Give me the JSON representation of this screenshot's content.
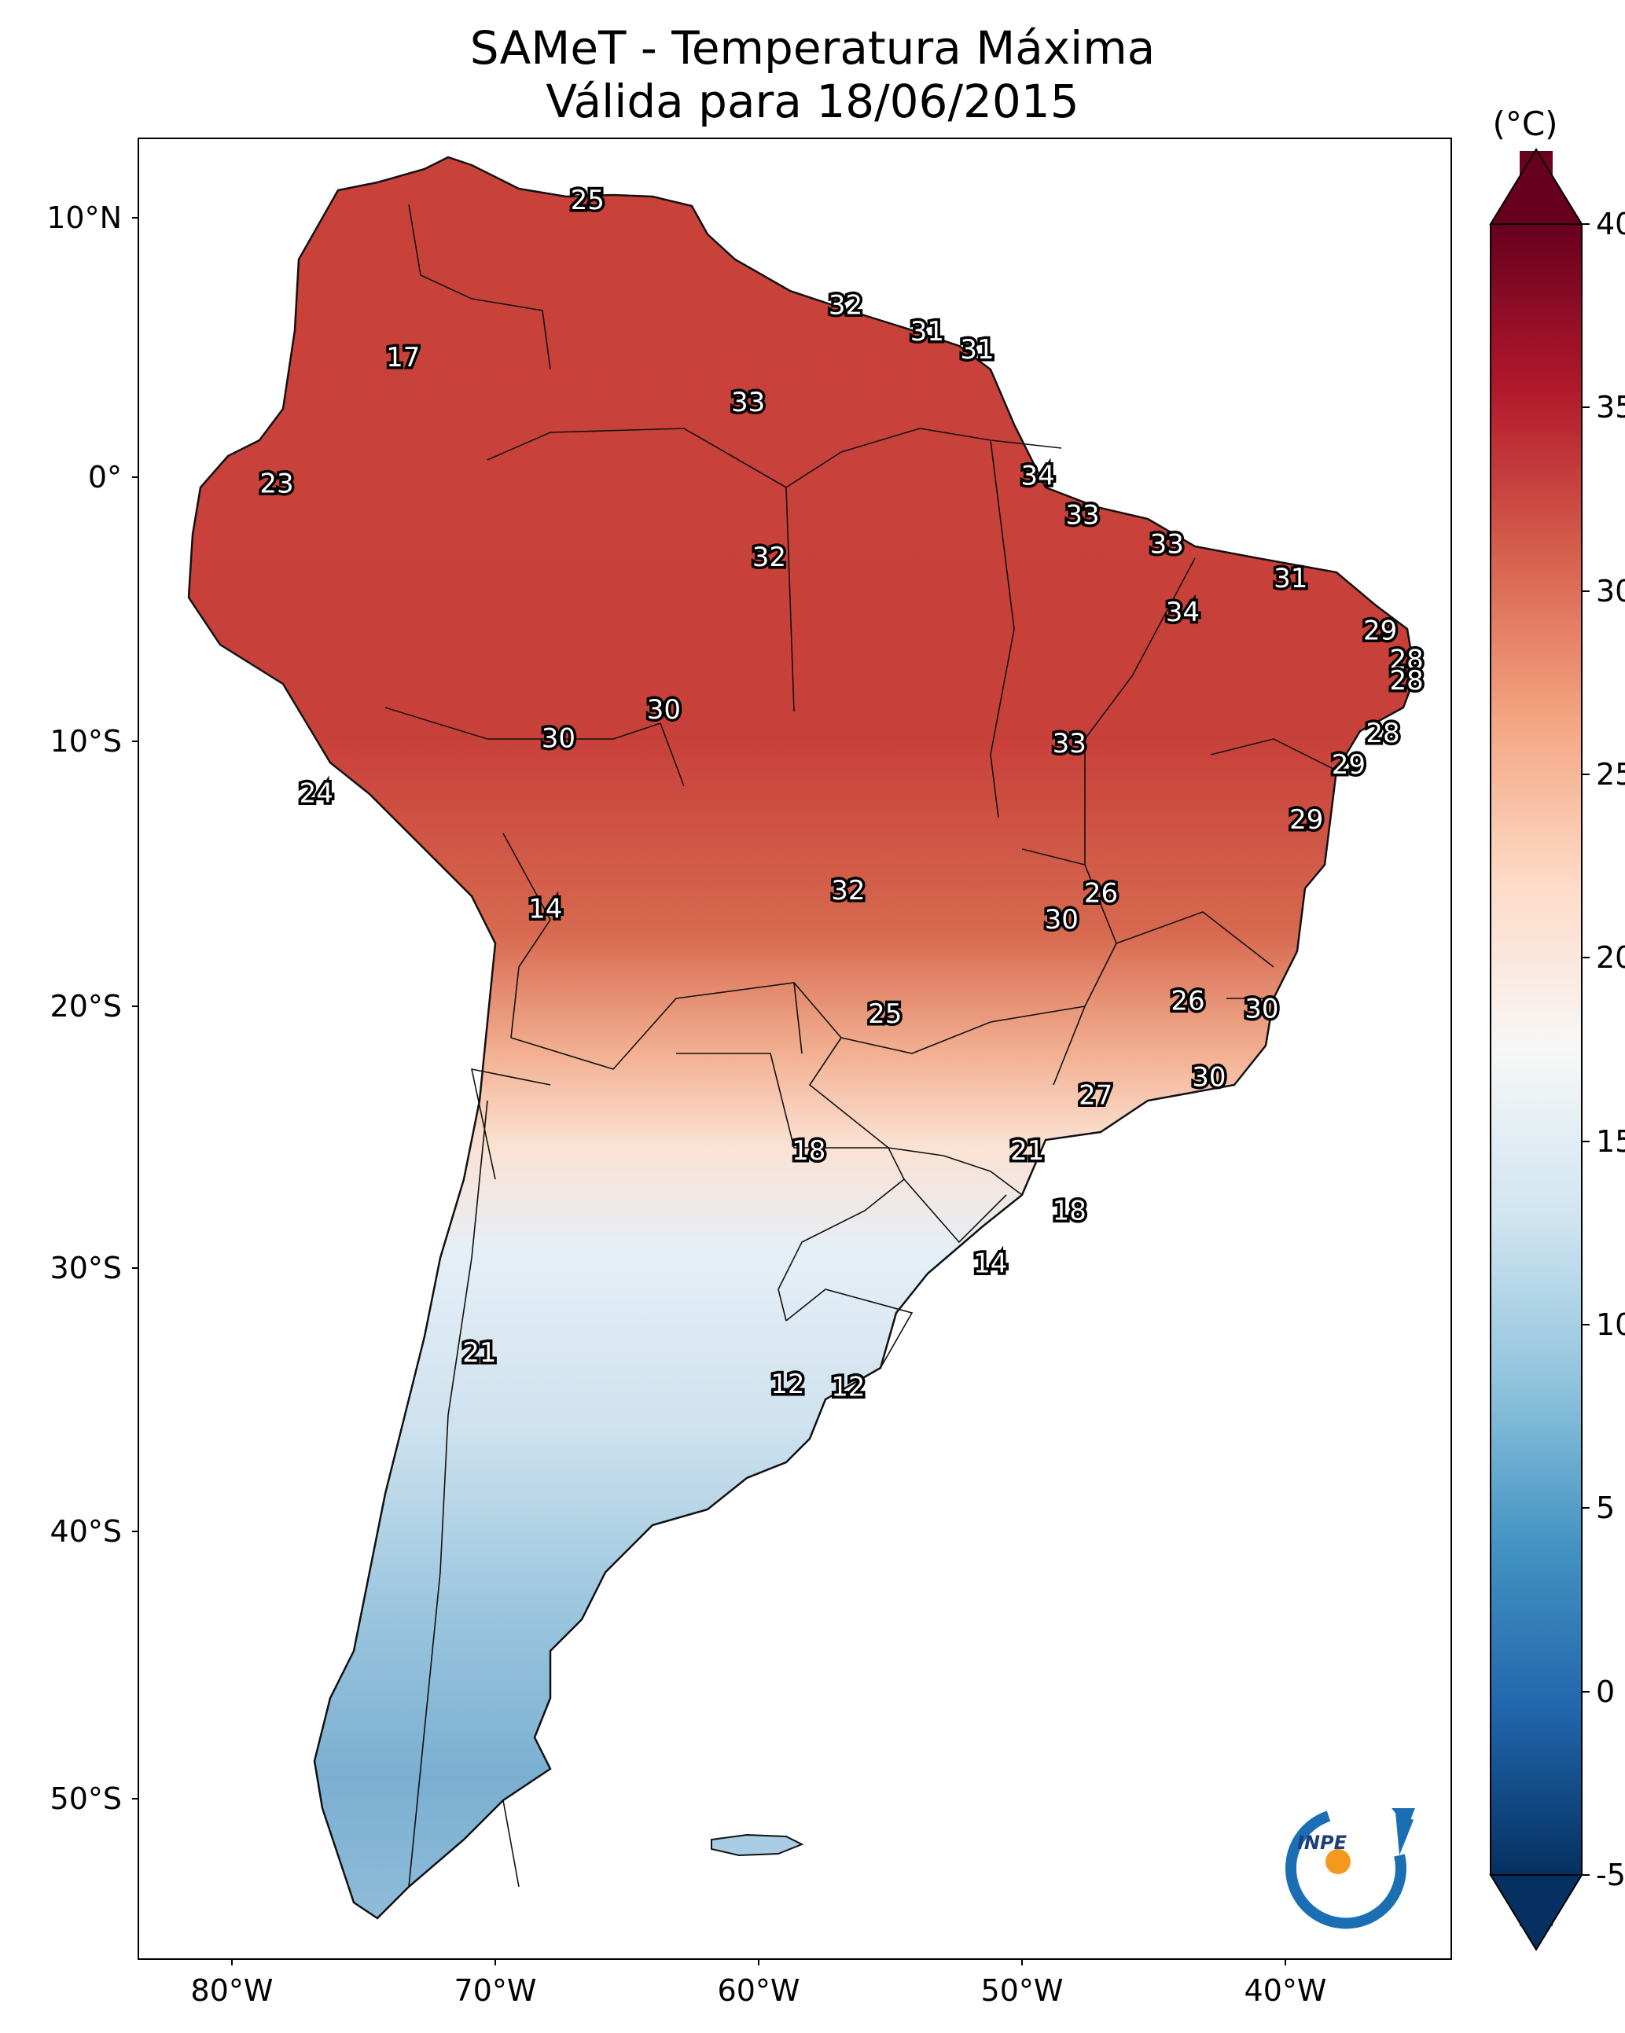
{
  "title": "SAMeT - Temperatura Máxima",
  "subtitle": "Válida para 18/06/2015",
  "colorbar": {
    "unit": "(°C)",
    "ticks": [
      "40",
      "35",
      "30",
      "25",
      "20",
      "15",
      "10",
      "5",
      "0",
      "-5"
    ],
    "colormap": [
      "#67001f",
      "#b2182b",
      "#d6604d",
      "#f4a582",
      "#fddbc7",
      "#f7f7f7",
      "#d1e5f0",
      "#92c5de",
      "#4393c3",
      "#2166ac",
      "#053061"
    ]
  },
  "axes": {
    "lat_labels": [
      "10°N",
      "0°",
      "10°S",
      "20°S",
      "30°S",
      "40°S",
      "50°S"
    ],
    "lon_labels": [
      "80°W",
      "70°W",
      "60°W",
      "50°W",
      "40°W"
    ]
  },
  "logo": {
    "text": "INPE",
    "icon": "inpe-logo"
  },
  "point_labels": [
    {
      "v": "25",
      "lon": -66.5,
      "lat": 10.5
    },
    {
      "v": "17",
      "lon": -73.5,
      "lat": 4.5
    },
    {
      "v": "32",
      "lon": -56.7,
      "lat": 6.5
    },
    {
      "v": "31",
      "lon": -53.6,
      "lat": 5.5
    },
    {
      "v": "31",
      "lon": -51.7,
      "lat": 4.8
    },
    {
      "v": "33",
      "lon": -60.4,
      "lat": 2.8
    },
    {
      "v": "23",
      "lon": -78.3,
      "lat": -0.3
    },
    {
      "v": "34",
      "lon": -49.4,
      "lat": 0.0
    },
    {
      "v": "33",
      "lon": -47.7,
      "lat": -1.5
    },
    {
      "v": "33",
      "lon": -44.5,
      "lat": -2.6
    },
    {
      "v": "32",
      "lon": -59.6,
      "lat": -3.1
    },
    {
      "v": "31",
      "lon": -39.8,
      "lat": -3.9
    },
    {
      "v": "34",
      "lon": -43.9,
      "lat": -5.2
    },
    {
      "v": "29",
      "lon": -36.4,
      "lat": -5.9
    },
    {
      "v": "28",
      "lon": -35.4,
      "lat": -7.0
    },
    {
      "v": "28",
      "lon": -35.4,
      "lat": -7.8
    },
    {
      "v": "30",
      "lon": -63.6,
      "lat": -8.9
    },
    {
      "v": "30",
      "lon": -67.6,
      "lat": -10.0
    },
    {
      "v": "33",
      "lon": -48.2,
      "lat": -10.2
    },
    {
      "v": "28",
      "lon": -36.3,
      "lat": -9.8
    },
    {
      "v": "29",
      "lon": -37.6,
      "lat": -11.0
    },
    {
      "v": "24",
      "lon": -76.8,
      "lat": -12.1
    },
    {
      "v": "29",
      "lon": -39.2,
      "lat": -13.1
    },
    {
      "v": "32",
      "lon": -56.6,
      "lat": -15.8
    },
    {
      "v": "26",
      "lon": -47.0,
      "lat": -15.9
    },
    {
      "v": "14",
      "lon": -68.1,
      "lat": -16.5
    },
    {
      "v": "30",
      "lon": -48.5,
      "lat": -16.9
    },
    {
      "v": "26",
      "lon": -43.7,
      "lat": -20.0
    },
    {
      "v": "25",
      "lon": -55.2,
      "lat": -20.5
    },
    {
      "v": "30",
      "lon": -40.9,
      "lat": -20.3
    },
    {
      "v": "30",
      "lon": -42.9,
      "lat": -22.9
    },
    {
      "v": "27",
      "lon": -47.2,
      "lat": -23.6
    },
    {
      "v": "18",
      "lon": -58.1,
      "lat": -25.7
    },
    {
      "v": "21",
      "lon": -49.8,
      "lat": -25.7
    },
    {
      "v": "18",
      "lon": -48.2,
      "lat": -28.0
    },
    {
      "v": "14",
      "lon": -51.2,
      "lat": -30.0
    },
    {
      "v": "21",
      "lon": -70.6,
      "lat": -33.4
    },
    {
      "v": "12",
      "lon": -58.9,
      "lat": -34.6
    },
    {
      "v": "12",
      "lon": -56.6,
      "lat": -34.7
    }
  ]
}
